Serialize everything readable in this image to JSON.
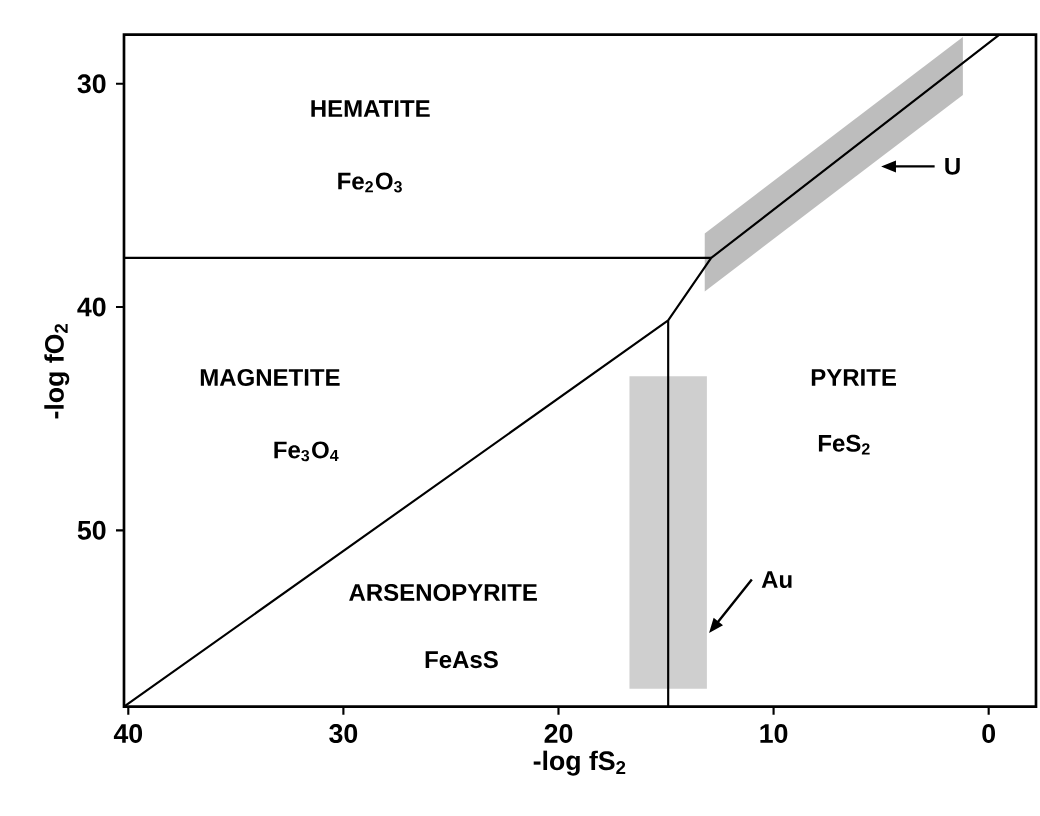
{
  "chart_data": {
    "type": "line",
    "xlabel": "-log fS$_{2}$",
    "ylabel": "-log fO$_{2}$",
    "xlim": [
      40.2,
      -2.2
    ],
    "ylim": [
      57.9,
      27.8
    ],
    "xticks": [
      40,
      30,
      20,
      10,
      0
    ],
    "yticks": [
      30,
      40,
      50
    ],
    "series": [
      {
        "color": "#000000",
        "x": [
          40.2,
          12.9
        ],
        "values": [
          37.8,
          37.8
        ]
      },
      {
        "color": "#000000",
        "x": [
          40.2,
          14.9,
          12.9,
          -0.5
        ],
        "values": [
          57.9,
          40.6,
          37.8,
          27.8
        ]
      },
      {
        "color": "#000000",
        "x": [
          14.9,
          14.9
        ],
        "values": [
          40.6,
          57.9
        ]
      },
      {
        "type": "area",
        "color": "#bdbdbd",
        "x": [
          13.2,
          1.2
        ],
        "values": [
          null,
          null
        ],
        "lower": [
          36.7,
          27.9
        ],
        "upper": [
          39.3,
          30.5
        ]
      },
      {
        "type": "area",
        "color": "#cfcfcf",
        "x": [
          16.7,
          13.1
        ],
        "values": [
          null,
          null
        ],
        "lower": [
          43.1,
          43.1
        ],
        "upper": [
          57.1,
          57.1
        ]
      }
    ],
    "annotations": [
      "HEMATITE",
      "Fe$_{2}$O$_{3}$",
      "MAGNETITE",
      "Fe$_{3}$O$_{4}$",
      "PYRITE",
      "FeS$_{2}$",
      "ARSENOPYRITE",
      "FeAsS",
      {
        "text": "U",
        "x": 5.0,
        "y": 33.7
      },
      {
        "text": "Au",
        "x": 13.0,
        "y": 54.6
      }
    ]
  }
}
